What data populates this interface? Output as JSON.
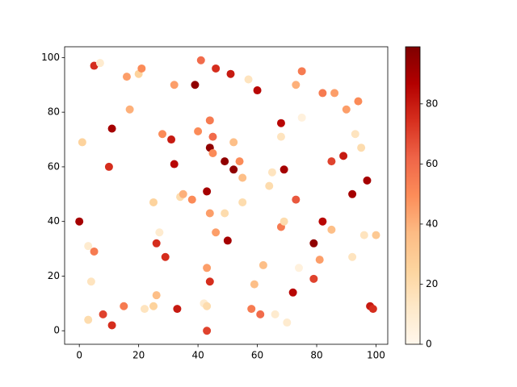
{
  "chart_data": {
    "type": "scatter",
    "xlim": [
      -4.95,
      103.95
    ],
    "ylim": [
      -4.95,
      103.95
    ],
    "xticks": [
      0,
      20,
      40,
      60,
      80,
      100
    ],
    "yticks": [
      0,
      20,
      40,
      60,
      80,
      100
    ],
    "clim": [
      0,
      99
    ],
    "cticks": [
      0,
      20,
      40,
      60,
      80
    ],
    "colormap": [
      "#fff7ec",
      "#fee8c8",
      "#fdd49e",
      "#fdbb84",
      "#fc8d59",
      "#ef6548",
      "#d7301f",
      "#b30000",
      "#7f0000"
    ],
    "x": [
      0,
      5,
      7,
      1,
      5,
      3,
      4,
      3,
      8,
      11,
      11,
      10,
      15,
      16,
      17,
      20,
      21,
      22,
      25,
      26,
      25,
      26,
      27,
      28,
      29,
      31,
      32,
      32,
      33,
      34,
      35,
      38,
      39,
      40,
      41,
      42,
      43,
      43,
      43,
      43,
      44,
      44,
      45,
      45,
      44,
      44,
      46,
      46,
      49,
      49,
      50,
      51,
      52,
      52,
      54,
      55,
      55,
      57,
      58,
      59,
      60,
      61,
      62,
      64,
      65,
      66,
      68,
      68,
      68,
      69,
      69,
      70,
      72,
      73,
      73,
      74,
      75,
      75,
      79,
      79,
      81,
      82,
      82,
      85,
      85,
      86,
      89,
      90,
      92,
      92,
      93,
      94,
      95,
      96,
      97,
      98,
      99,
      100
    ],
    "y": [
      40,
      97,
      98,
      69,
      29,
      31,
      18,
      4,
      6,
      2,
      74,
      60,
      9,
      93,
      81,
      94,
      96,
      8,
      9,
      13,
      47,
      32,
      36,
      72,
      27,
      70,
      61,
      90,
      8,
      49,
      50,
      48,
      90,
      73,
      99,
      10,
      9,
      23,
      51,
      0,
      77,
      67,
      71,
      65,
      43,
      18,
      96,
      36,
      43,
      62,
      33,
      94,
      69,
      59,
      62,
      56,
      47,
      92,
      8,
      17,
      88,
      6,
      24,
      53,
      58,
      6,
      71,
      76,
      38,
      40,
      59,
      3,
      14,
      48,
      90,
      23,
      78,
      95,
      32,
      19,
      26,
      40,
      87,
      62,
      37,
      87,
      64,
      81,
      50,
      27,
      72,
      84,
      67,
      35,
      55,
      9,
      8,
      35
    ],
    "c": [
      90,
      75,
      10,
      25,
      55,
      10,
      15,
      20,
      70,
      75,
      90,
      75,
      55,
      45,
      40,
      25,
      50,
      15,
      25,
      35,
      25,
      75,
      10,
      50,
      75,
      80,
      85,
      45,
      80,
      20,
      40,
      50,
      95,
      50,
      60,
      10,
      20,
      45,
      90,
      70,
      55,
      95,
      60,
      50,
      45,
      75,
      75,
      45,
      20,
      95,
      90,
      80,
      35,
      95,
      50,
      35,
      20,
      15,
      55,
      35,
      85,
      60,
      35,
      20,
      15,
      10,
      15,
      85,
      55,
      20,
      90,
      10,
      85,
      65,
      40,
      5,
      5,
      55,
      95,
      70,
      45,
      85,
      55,
      70,
      35,
      45,
      80,
      45,
      90,
      15,
      15,
      50,
      20,
      15,
      90,
      80,
      75,
      30
    ]
  }
}
